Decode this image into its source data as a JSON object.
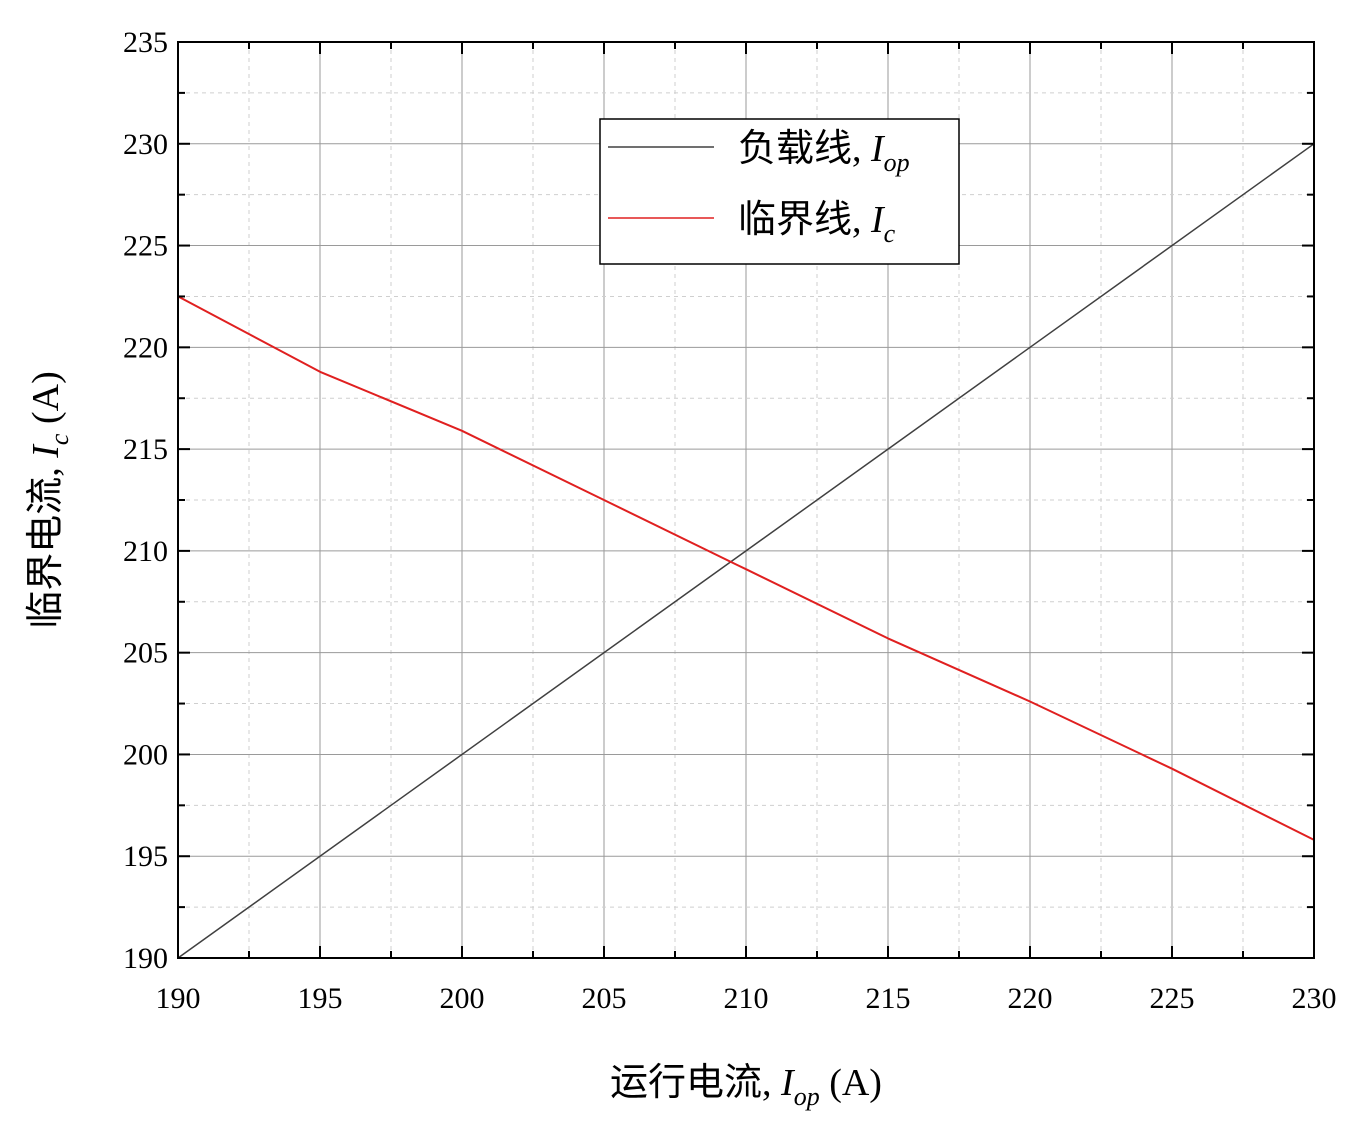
{
  "chart_data": {
    "type": "line",
    "xlabel": {
      "prefix": "运行电流, ",
      "var": "I",
      "sub": "op",
      "suffix": " (A)"
    },
    "ylabel": {
      "prefix": "临界电流, ",
      "var": "I",
      "sub": "c",
      "suffix": " (A)"
    },
    "xlim": [
      190,
      230
    ],
    "ylim": [
      190,
      235
    ],
    "xticks": [
      190,
      195,
      200,
      205,
      210,
      215,
      220,
      225,
      230
    ],
    "yticks": [
      190,
      195,
      200,
      205,
      210,
      215,
      220,
      225,
      230,
      235
    ],
    "grid": true,
    "legend_position": "top-center",
    "series": [
      {
        "name": {
          "prefix": "负载线, ",
          "var": "I",
          "sub": "op"
        },
        "color": "#404040",
        "x": [
          190,
          230
        ],
        "y": [
          190,
          230
        ]
      },
      {
        "name": {
          "prefix": "临界线, ",
          "var": "I",
          "sub": "c"
        },
        "color": "#e02020",
        "x": [
          190,
          195,
          200,
          205,
          209.7,
          210,
          215,
          220,
          225,
          230
        ],
        "y": [
          222.5,
          218.8,
          215.9,
          212.5,
          209.3,
          209.1,
          205.7,
          202.6,
          199.3,
          195.8
        ]
      }
    ]
  }
}
